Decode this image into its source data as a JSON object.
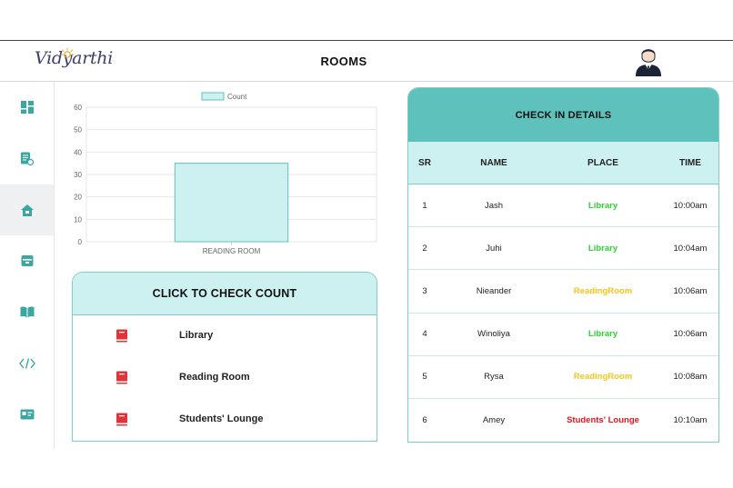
{
  "header": {
    "logo_text": "Vidyarthi",
    "title": "ROOMS"
  },
  "sidebar": {
    "items": [
      {
        "icon": "dashboard-icon",
        "active": false
      },
      {
        "icon": "document-icon",
        "active": false
      },
      {
        "icon": "home-icon",
        "active": true
      },
      {
        "icon": "archive-box-icon",
        "active": false
      },
      {
        "icon": "open-book-icon",
        "active": false
      },
      {
        "icon": "code-icon",
        "active": false
      },
      {
        "icon": "id-card-icon",
        "active": false
      }
    ]
  },
  "chart_data": {
    "type": "bar",
    "categories": [
      "READING ROOM"
    ],
    "series": [
      {
        "name": "Count",
        "values": [
          35
        ]
      }
    ],
    "ylim": [
      0,
      60
    ],
    "yticks": [
      0,
      10,
      20,
      30,
      40,
      50,
      60
    ],
    "grid": true,
    "legend": "top-center",
    "bar_fill": "#cdf1f0",
    "bar_stroke": "#5fc1bb"
  },
  "count_card": {
    "title": "CLICK TO CHECK COUNT",
    "items": [
      {
        "label": "Library"
      },
      {
        "label": "Reading Room"
      },
      {
        "label": "Students' Lounge"
      }
    ]
  },
  "checkin": {
    "title": "CHECK IN DETAILS",
    "columns": {
      "sr": "SR",
      "name": "NAME",
      "place": "PLACE",
      "time": "TIME"
    },
    "rows": [
      {
        "sr": "1",
        "name": "Jash",
        "place": "Library",
        "time": "10:00am",
        "place_color": "#2fd035"
      },
      {
        "sr": "2",
        "name": "Juhi",
        "place": "Library",
        "time": "10:04am",
        "place_color": "#2fd035"
      },
      {
        "sr": "3",
        "name": "Nieander",
        "place": "ReadingRoom",
        "time": "10:06am",
        "place_color": "#f5c518"
      },
      {
        "sr": "4",
        "name": "Winoliya",
        "place": "Library",
        "time": "10:06am",
        "place_color": "#2fd035"
      },
      {
        "sr": "5",
        "name": "Rysa",
        "place": "ReadingRoom",
        "time": "10:08am",
        "place_color": "#f5c518"
      },
      {
        "sr": "6",
        "name": "Amey",
        "place": "Students' Lounge",
        "time": "10:10am",
        "place_color": "#e3141b"
      }
    ]
  },
  "colors": {
    "accent": "#5fc1bb",
    "accent_light": "#cdf1f0",
    "icon": "#3aa7a0",
    "book_red": "#e0343a"
  }
}
